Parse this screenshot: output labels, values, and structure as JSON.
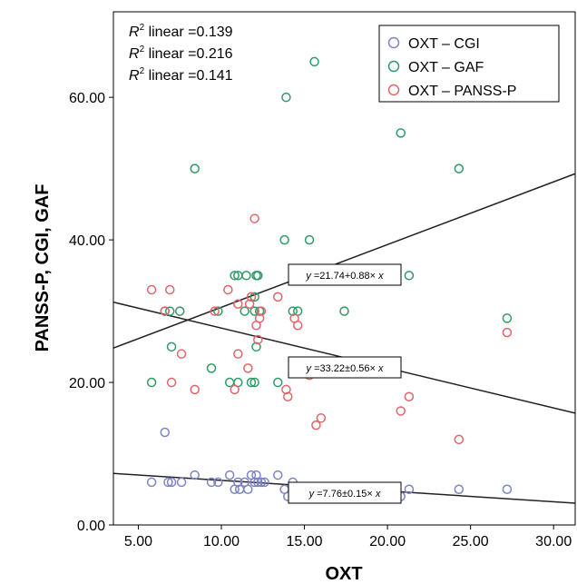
{
  "chart_data": {
    "type": "scatter",
    "xlabel": "OXT",
    "ylabel": "PANSS-P, CGI, GAF",
    "xlim": [
      3.5,
      31.3
    ],
    "ylim": [
      0,
      72
    ],
    "x_ticks": [
      "5.00",
      "10.00",
      "15.00",
      "20.00",
      "25.00",
      "30.00"
    ],
    "y_ticks": [
      "0.00",
      "20.00",
      "40.00",
      "60.00"
    ],
    "r2_labels": [
      {
        "prefix": "R",
        "sup": "2",
        "text": " linear =0.139"
      },
      {
        "prefix": "R",
        "sup": "2",
        "text": " linear =0.216"
      },
      {
        "prefix": "R",
        "sup": "2",
        "text": " linear =0.141"
      }
    ],
    "legend": [
      {
        "label": "OXT – CGI",
        "color": "#7b84c4"
      },
      {
        "label": "OXT – GAF",
        "color": "#2f9a66"
      },
      {
        "label": "OXT – PANSS-P",
        "color": "#e0656a"
      }
    ],
    "series": [
      {
        "name": "OXT – CGI",
        "color": "#7b84c4",
        "points": [
          [
            5.8,
            6
          ],
          [
            6.6,
            13
          ],
          [
            6.8,
            6
          ],
          [
            7.0,
            6
          ],
          [
            7.6,
            6
          ],
          [
            8.4,
            7
          ],
          [
            9.4,
            6
          ],
          [
            9.8,
            6
          ],
          [
            10.5,
            7
          ],
          [
            10.8,
            5
          ],
          [
            11.1,
            5
          ],
          [
            11.0,
            6
          ],
          [
            11.4,
            6
          ],
          [
            11.6,
            5
          ],
          [
            11.8,
            7
          ],
          [
            12.0,
            6
          ],
          [
            12.1,
            7
          ],
          [
            12.2,
            6
          ],
          [
            12.4,
            6
          ],
          [
            12.6,
            6
          ],
          [
            13.4,
            7
          ],
          [
            13.8,
            5
          ],
          [
            14.0,
            4
          ],
          [
            14.3,
            6
          ],
          [
            15.7,
            4
          ],
          [
            16.0,
            5
          ],
          [
            20.5,
            4
          ],
          [
            20.8,
            4
          ],
          [
            21.3,
            5
          ],
          [
            24.3,
            5
          ],
          [
            27.2,
            5
          ]
        ]
      },
      {
        "name": "OXT – GAF",
        "color": "#2f9a66",
        "points": [
          [
            5.8,
            20
          ],
          [
            6.6,
            30
          ],
          [
            6.9,
            30
          ],
          [
            7.0,
            25
          ],
          [
            7.5,
            30
          ],
          [
            8.4,
            50
          ],
          [
            9.4,
            22
          ],
          [
            9.8,
            30
          ],
          [
            10.5,
            20
          ],
          [
            10.8,
            35
          ],
          [
            11.0,
            35
          ],
          [
            11.0,
            20
          ],
          [
            11.4,
            30
          ],
          [
            11.5,
            35
          ],
          [
            11.8,
            20
          ],
          [
            12.0,
            20
          ],
          [
            12.0,
            32
          ],
          [
            12.0,
            30
          ],
          [
            12.1,
            35
          ],
          [
            12.2,
            35
          ],
          [
            12.1,
            25
          ],
          [
            12.3,
            30
          ],
          [
            13.4,
            20
          ],
          [
            13.8,
            40
          ],
          [
            13.9,
            60
          ],
          [
            14.3,
            30
          ],
          [
            14.6,
            30
          ],
          [
            15.3,
            40
          ],
          [
            15.6,
            65
          ],
          [
            16.1,
            35
          ],
          [
            17.4,
            30
          ],
          [
            20.8,
            55
          ],
          [
            21.3,
            35
          ],
          [
            24.3,
            50
          ],
          [
            27.2,
            29
          ]
        ]
      },
      {
        "name": "OXT – PANSS-P",
        "color": "#e0656a",
        "points": [
          [
            5.8,
            33
          ],
          [
            6.6,
            30
          ],
          [
            6.9,
            33
          ],
          [
            7.0,
            20
          ],
          [
            7.6,
            24
          ],
          [
            8.4,
            19
          ],
          [
            9.6,
            30
          ],
          [
            10.4,
            33
          ],
          [
            10.8,
            19
          ],
          [
            11.0,
            24
          ],
          [
            11.0,
            31
          ],
          [
            11.6,
            22
          ],
          [
            11.7,
            31
          ],
          [
            11.8,
            32
          ],
          [
            12.0,
            43
          ],
          [
            12.1,
            28
          ],
          [
            12.2,
            26
          ],
          [
            12.3,
            29
          ],
          [
            12.4,
            30
          ],
          [
            13.4,
            32
          ],
          [
            13.9,
            19
          ],
          [
            14.0,
            18
          ],
          [
            14.4,
            29
          ],
          [
            14.6,
            28
          ],
          [
            15.3,
            21
          ],
          [
            15.7,
            14
          ],
          [
            16.0,
            15
          ],
          [
            20.8,
            16
          ],
          [
            21.3,
            18
          ],
          [
            24.3,
            12
          ],
          [
            27.2,
            27
          ]
        ]
      }
    ],
    "fit_lines": [
      {
        "intercept": 21.74,
        "slope": 0.88,
        "label": [
          "y",
          " =21.74+0.88× ",
          "x"
        ]
      },
      {
        "intercept": 33.22,
        "slope": -0.56,
        "label": [
          "y",
          " =33.22±0.56× ",
          "x"
        ]
      },
      {
        "intercept": 7.76,
        "slope": -0.15,
        "label": [
          "y",
          " =7.76±0.15× ",
          "x"
        ]
      }
    ]
  }
}
